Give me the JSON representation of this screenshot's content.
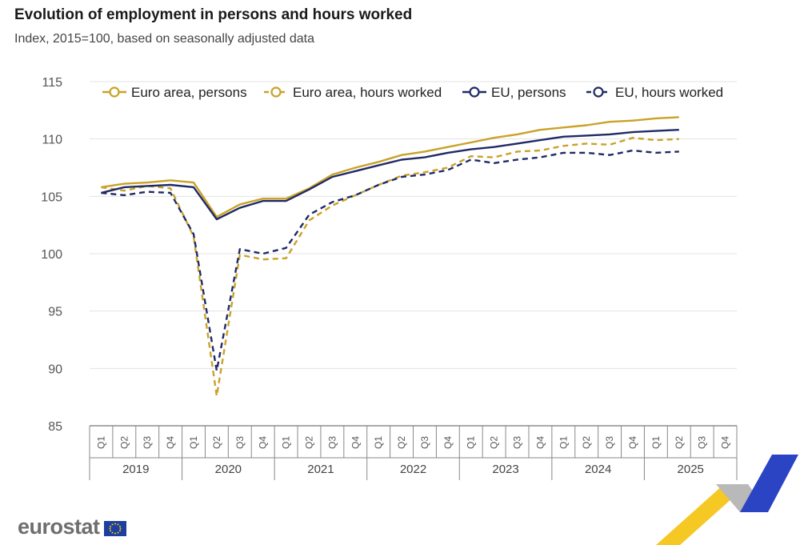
{
  "title": "Evolution of employment in persons and hours worked",
  "subtitle": "Index, 2015=100, based on seasonally adjusted data",
  "brand": {
    "logo_text": "eurostat"
  },
  "chart_data": {
    "type": "line",
    "ylim": [
      85,
      115
    ],
    "yticks": [
      85,
      90,
      95,
      100,
      105,
      110,
      115
    ],
    "ytick_labels": [
      "85",
      "90",
      "95",
      "100",
      "105",
      "110",
      "115"
    ],
    "grid": true,
    "legend_position": "top",
    "quarters": [
      "Q1",
      "Q2",
      "Q3",
      "Q4",
      "Q1",
      "Q2",
      "Q3",
      "Q4",
      "Q1",
      "Q2",
      "Q3",
      "Q4",
      "Q1",
      "Q2",
      "Q3",
      "Q4",
      "Q1",
      "Q2",
      "Q3",
      "Q4",
      "Q1",
      "Q2",
      "Q3",
      "Q4",
      "Q1",
      "Q2",
      "Q3",
      "Q4"
    ],
    "years": [
      "2019",
      "2020",
      "2021",
      "2022",
      "2023",
      "2024",
      "2025"
    ],
    "series": [
      {
        "name": "Euro area, persons",
        "color": "#c9a227",
        "dash": "solid",
        "values": [
          105.8,
          106.1,
          106.2,
          106.4,
          106.2,
          103.2,
          104.3,
          104.8,
          104.8,
          105.7,
          106.9,
          107.5,
          108.0,
          108.6,
          108.9,
          109.3,
          109.7,
          110.1,
          110.4,
          110.8,
          111.0,
          111.2,
          111.5,
          111.6,
          111.8,
          111.9,
          null,
          null
        ]
      },
      {
        "name": "Euro area, hours worked",
        "color": "#c9a227",
        "dash": "dashed",
        "values": [
          105.8,
          105.5,
          105.9,
          105.7,
          101.5,
          87.6,
          99.9,
          99.5,
          99.6,
          102.9,
          104.2,
          105.1,
          106.0,
          106.8,
          107.1,
          107.5,
          108.5,
          108.4,
          108.9,
          109.0,
          109.4,
          109.6,
          109.5,
          110.1,
          109.9,
          110.0,
          null,
          null
        ]
      },
      {
        "name": "EU, persons",
        "color": "#1f2a66",
        "dash": "solid",
        "values": [
          105.3,
          105.8,
          105.9,
          106.0,
          105.8,
          103.0,
          104.0,
          104.6,
          104.6,
          105.6,
          106.7,
          107.2,
          107.7,
          108.2,
          108.4,
          108.8,
          109.1,
          109.3,
          109.6,
          109.9,
          110.2,
          110.3,
          110.4,
          110.6,
          110.7,
          110.8,
          null,
          null
        ]
      },
      {
        "name": "EU, hours worked",
        "color": "#1f2a66",
        "dash": "dashed",
        "values": [
          105.3,
          105.1,
          105.4,
          105.3,
          101.7,
          89.8,
          100.4,
          100.0,
          100.5,
          103.4,
          104.5,
          105.1,
          106.0,
          106.7,
          106.9,
          107.3,
          108.2,
          107.9,
          108.2,
          108.4,
          108.8,
          108.8,
          108.6,
          109.0,
          108.8,
          108.9,
          null,
          null
        ]
      }
    ]
  }
}
